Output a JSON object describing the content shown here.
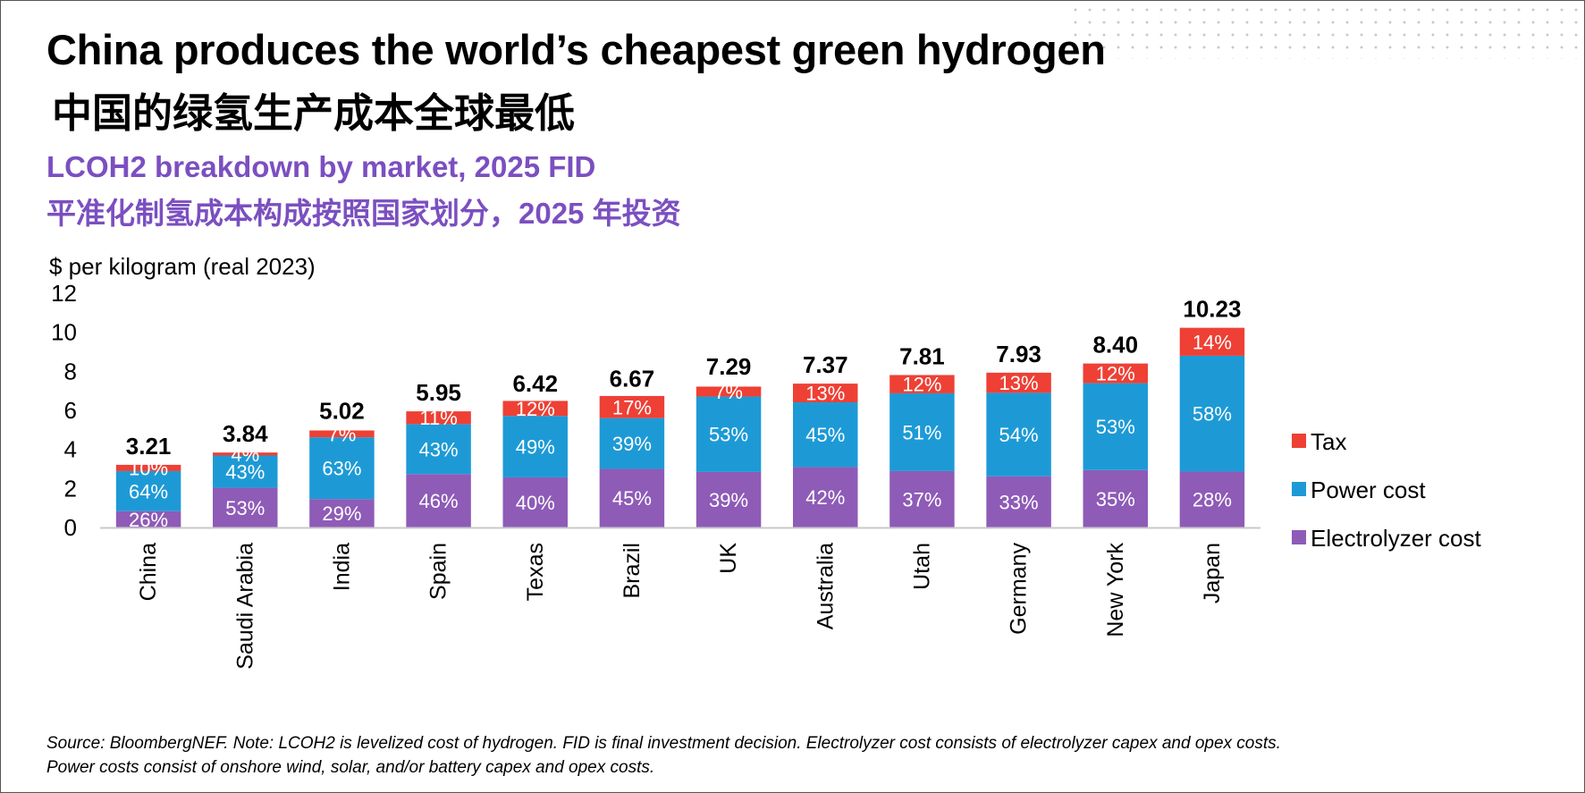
{
  "title_en": "China produces the world’s cheapest green hydrogen",
  "title_cn": "中国的绿氢生产成本全球最低",
  "subtitle_en": "LCOH2 breakdown by market, 2025 FID",
  "subtitle_cn": "平准化制氢成本构成按照国家划分，2025 年投资",
  "unit_label": "$ per kilogram (real 2023)",
  "source_line1": "Source: BloombergNEF. Note: LCOH2 is levelized cost of hydrogen. FID is final investment decision. Electrolyzer cost consists of electrolyzer capex and opex costs.",
  "source_line2": "Power costs consist of onshore wind, solar, and/or battery capex and opex costs.",
  "chart_data": {
    "type": "bar",
    "stacked": true,
    "title": "LCOH2 breakdown by market, 2025 FID",
    "ylabel": "$ per kilogram (real 2023)",
    "xlabel": "",
    "ylim": [
      0,
      12
    ],
    "yticks": [
      "0",
      "2",
      "4",
      "6",
      "8",
      "10",
      "12"
    ],
    "categories": [
      "China",
      "Saudi Arabia",
      "India",
      "Spain",
      "Texas",
      "Brazil",
      "UK",
      "Australia",
      "Utah",
      "Germany",
      "New York",
      "Japan"
    ],
    "totals": [
      3.21,
      3.84,
      5.02,
      5.95,
      6.42,
      6.67,
      7.29,
      7.37,
      7.81,
      7.93,
      8.4,
      10.23
    ],
    "total_labels": [
      "3.21",
      "3.84",
      "5.02",
      "5.95",
      "6.42",
      "6.67",
      "7.29",
      "7.37",
      "7.81",
      "7.93",
      "8.40",
      "10.23"
    ],
    "series": [
      {
        "name": "Electrolyzer cost",
        "color": "#8e5bb7",
        "shares": [
          26,
          53,
          29,
          46,
          40,
          45,
          39,
          42,
          37,
          33,
          35,
          28
        ],
        "labels": [
          "26%",
          "53%",
          "29%",
          "46%",
          "40%",
          "45%",
          "39%",
          "42%",
          "37%",
          "33%",
          "35%",
          "28%"
        ]
      },
      {
        "name": "Power cost",
        "color": "#1d9ad6",
        "shares": [
          64,
          43,
          63,
          43,
          49,
          39,
          53,
          45,
          51,
          54,
          53,
          58
        ],
        "labels": [
          "64%",
          "43%",
          "63%",
          "43%",
          "49%",
          "39%",
          "53%",
          "45%",
          "51%",
          "54%",
          "53%",
          "58%"
        ]
      },
      {
        "name": "Tax",
        "color": "#ee4035",
        "shares": [
          10,
          4,
          7,
          11,
          12,
          17,
          7,
          13,
          12,
          13,
          12,
          14
        ],
        "labels": [
          "10%",
          "4%",
          "7%",
          "11%",
          "12%",
          "17%",
          "7%",
          "13%",
          "12%",
          "13%",
          "12%",
          "14%"
        ]
      }
    ],
    "legend": [
      {
        "name": "Tax",
        "color": "#ee4035"
      },
      {
        "name": "Power cost",
        "color": "#1d9ad6"
      },
      {
        "name": "Electrolyzer cost",
        "color": "#8e5bb7"
      }
    ],
    "legend_position": "right",
    "grid": false
  }
}
